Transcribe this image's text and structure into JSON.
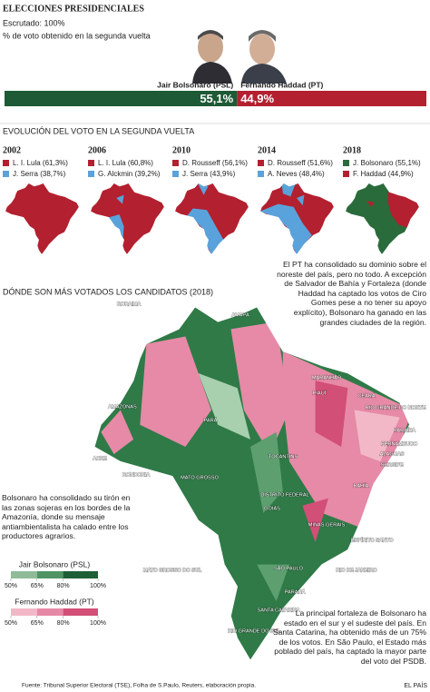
{
  "header": {
    "title": "ELECCIONES PRESIDENCIALES",
    "counted": "Escrutado: 100%",
    "subtitle": "% de voto obtenido en la segunda vuelta"
  },
  "chart_data": {
    "type": "bar",
    "categories": [
      "Jair Bolsonaro (PSL)",
      "Fernando Haddad (PT)"
    ],
    "values": [
      55.1,
      44.9
    ],
    "value_labels": [
      "55,1%",
      "44,9%"
    ],
    "colors": [
      "#1d5a35",
      "#b3202f"
    ],
    "xlim": [
      0,
      100
    ]
  },
  "evolution": {
    "title": "EVOLUCIÓN DEL VOTO EN LA SEGUNDA VUELTA",
    "maps": [
      {
        "year": "2002",
        "legend": [
          {
            "name": "L. I. Lula (61,3%)",
            "color": "#b3202f"
          },
          {
            "name": "J. Serra (38,7%)",
            "color": "#5aa2db"
          }
        ]
      },
      {
        "year": "2006",
        "legend": [
          {
            "name": "L. I. Lula (60,8%)",
            "color": "#b3202f"
          },
          {
            "name": "G. Alckmin (39,2%)",
            "color": "#5aa2db"
          }
        ]
      },
      {
        "year": "2010",
        "legend": [
          {
            "name": "D. Rousseff (56,1%)",
            "color": "#b3202f"
          },
          {
            "name": "J. Serra (43,9%)",
            "color": "#5aa2db"
          }
        ]
      },
      {
        "year": "2014",
        "legend": [
          {
            "name": "D. Rousseff (51,6%)",
            "color": "#b3202f"
          },
          {
            "name": "A. Neves (48,4%)",
            "color": "#5aa2db"
          }
        ]
      },
      {
        "year": "2018",
        "legend": [
          {
            "name": "J. Bolsonaro (55,1%)",
            "color": "#2a6b3c"
          },
          {
            "name": "F. Haddad (44,9%)",
            "color": "#b3202f"
          }
        ]
      }
    ]
  },
  "main_map": {
    "title": "DÓNDE SON MÁS VOTADOS LOS CANDIDATOS (2018)",
    "states": [
      "RORAIMA",
      "AMAPÁ",
      "AMAZONAS",
      "PARÁ",
      "MARANHÃO",
      "PIAUÍ",
      "CEARÁ",
      "RIO GRANDE DO NORTE",
      "PARAÍBA",
      "PERNAMBUCO",
      "ALAGOAS",
      "SERGIPE",
      "BAHÍA",
      "TOCANTINS",
      "ACRE",
      "RONDONIA",
      "MATO GROSSO",
      "DISTRITO FEDERAL",
      "GOIÁS",
      "MINAS GERAIS",
      "ESPÍRITO SANTO",
      "RIO DE JANEIRO",
      "SÃO PAULO",
      "MATO GROSSO DO SUL",
      "PARANÁ",
      "SANTA CATARINA",
      "RIO GRANDE DO SUL"
    ],
    "annotations": [
      "El PT ha consolidado su dominio sobre el noreste del país, pero no todo. A excepción de Salvador de Bahía y Fortaleza (donde Haddad ha captado los votos de Ciro Gomes pese a no tener su apoyo explícito), Bolsonaro ha ganado en las grandes ciudades de la región.",
      "Bolsonaro ha consolidado su tirón en las zonas sojeras en los bordes de la Amazonía, donde su mensaje antiambientalista ha calado entre los productores agrarios.",
      "La principal fortaleza de Bolsonaro ha estado en el sur y el sudeste del país. En Santa Catarina, ha obtenido más de un 75% de los votos. En São Paulo, el Estado más poblado del país, ha captado la mayor parte del voto del PSDB."
    ],
    "legends": [
      {
        "name": "Jair Bolsonaro (PSL)",
        "colors": [
          "#8fbb98",
          "#4f9465",
          "#1f5f37"
        ],
        "ticks": [
          {
            "value": 50,
            "label": "50%"
          },
          {
            "value": 65,
            "label": "65%"
          },
          {
            "value": 80,
            "label": "80%"
          },
          {
            "value": 100,
            "label": "100%"
          }
        ]
      },
      {
        "name": "Fernando Haddad (PT)",
        "colors": [
          "#f2b8c8",
          "#e689a6",
          "#d24f77"
        ],
        "ticks": [
          {
            "value": 50,
            "label": "50%"
          },
          {
            "value": 65,
            "label": "65%"
          },
          {
            "value": 80,
            "label": "80%"
          },
          {
            "value": 100,
            "label": "100%"
          }
        ]
      }
    ]
  },
  "footer": {
    "source": "Fuente: Tribunal Superior Electoral (TSE), Folha de S.Paulo, Reuters, elaboración propia.",
    "brand": "EL PAÍS"
  }
}
